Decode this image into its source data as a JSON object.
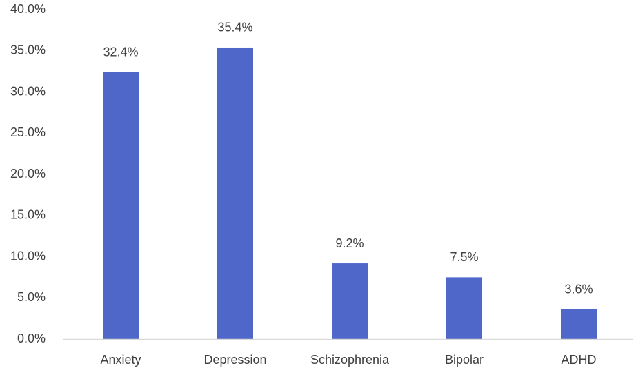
{
  "chart_data": {
    "type": "bar",
    "title": "",
    "xlabel": "",
    "ylabel": "",
    "categories": [
      "Anxiety",
      "Depression",
      "Schizophrenia",
      "Bipolar",
      "ADHD"
    ],
    "values": [
      32.4,
      35.4,
      9.2,
      7.5,
      3.6
    ],
    "data_labels": [
      "32.4%",
      "35.4%",
      "9.2%",
      "7.5%",
      "3.6%"
    ],
    "ylim": [
      0,
      40
    ],
    "yticks": [
      0,
      5,
      10,
      15,
      20,
      25,
      30,
      35,
      40
    ],
    "ytick_labels": [
      "0.0%",
      "5.0%",
      "10.0%",
      "15.0%",
      "20.0%",
      "25.0%",
      "30.0%",
      "35.0%",
      "40.0%"
    ],
    "grid": false,
    "legend": "none",
    "bar_color": "#4F67C9",
    "axis_color": "#D9D9D9",
    "text_color": "#404040"
  }
}
